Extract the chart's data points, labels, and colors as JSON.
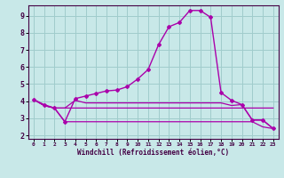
{
  "bg_color": "#c8e8e8",
  "grid_color": "#a0cccc",
  "line_color": "#aa00aa",
  "spine_color": "#440044",
  "xlabel": "Windchill (Refroidissement éolien,°C)",
  "xlim": [
    -0.5,
    23.5
  ],
  "ylim": [
    1.8,
    9.6
  ],
  "xticks": [
    0,
    1,
    2,
    3,
    4,
    5,
    6,
    7,
    8,
    9,
    10,
    11,
    12,
    13,
    14,
    15,
    16,
    17,
    18,
    19,
    20,
    21,
    22,
    23
  ],
  "yticks": [
    2,
    3,
    4,
    5,
    6,
    7,
    8,
    9
  ],
  "line1_x": [
    0,
    1,
    2,
    3,
    4,
    5,
    6,
    7,
    8,
    9,
    10,
    11,
    12,
    13,
    14,
    15,
    16,
    17,
    18,
    19,
    20,
    21,
    22,
    23
  ],
  "line1_y": [
    4.1,
    3.8,
    3.6,
    2.8,
    4.15,
    4.3,
    4.45,
    4.6,
    4.65,
    4.85,
    5.3,
    5.85,
    7.3,
    8.35,
    8.6,
    9.3,
    9.3,
    8.9,
    4.5,
    4.05,
    3.8,
    2.9,
    2.9,
    2.4
  ],
  "line2_x": [
    0,
    1,
    2,
    3,
    4,
    5,
    6,
    7,
    8,
    9,
    10,
    11,
    12,
    13,
    14,
    15,
    16,
    17,
    18,
    19,
    20,
    21,
    22,
    23
  ],
  "line2_y": [
    4.1,
    3.75,
    3.6,
    3.6,
    3.6,
    3.6,
    3.6,
    3.6,
    3.6,
    3.6,
    3.6,
    3.6,
    3.6,
    3.6,
    3.6,
    3.6,
    3.6,
    3.6,
    3.6,
    3.6,
    3.6,
    3.6,
    3.6,
    3.6
  ],
  "line3_x": [
    0,
    1,
    2,
    3,
    4,
    5,
    6,
    7,
    8,
    9,
    10,
    11,
    12,
    13,
    14,
    15,
    16,
    17,
    18,
    19,
    20,
    21,
    22,
    23
  ],
  "line3_y": [
    4.1,
    3.75,
    3.6,
    2.8,
    2.8,
    2.8,
    2.8,
    2.8,
    2.8,
    2.8,
    2.8,
    2.8,
    2.8,
    2.8,
    2.8,
    2.8,
    2.8,
    2.8,
    2.8,
    2.8,
    2.8,
    2.8,
    2.5,
    2.4
  ],
  "line4_x": [
    0,
    1,
    2,
    3,
    4,
    5,
    6,
    7,
    8,
    9,
    10,
    11,
    12,
    13,
    14,
    15,
    16,
    17,
    18,
    19,
    20,
    21,
    22,
    23
  ],
  "line4_y": [
    4.1,
    3.75,
    3.6,
    3.6,
    4.05,
    3.9,
    3.9,
    3.9,
    3.9,
    3.9,
    3.9,
    3.9,
    3.9,
    3.9,
    3.9,
    3.9,
    3.9,
    3.9,
    3.9,
    3.75,
    3.8,
    2.9,
    2.9,
    2.4
  ]
}
